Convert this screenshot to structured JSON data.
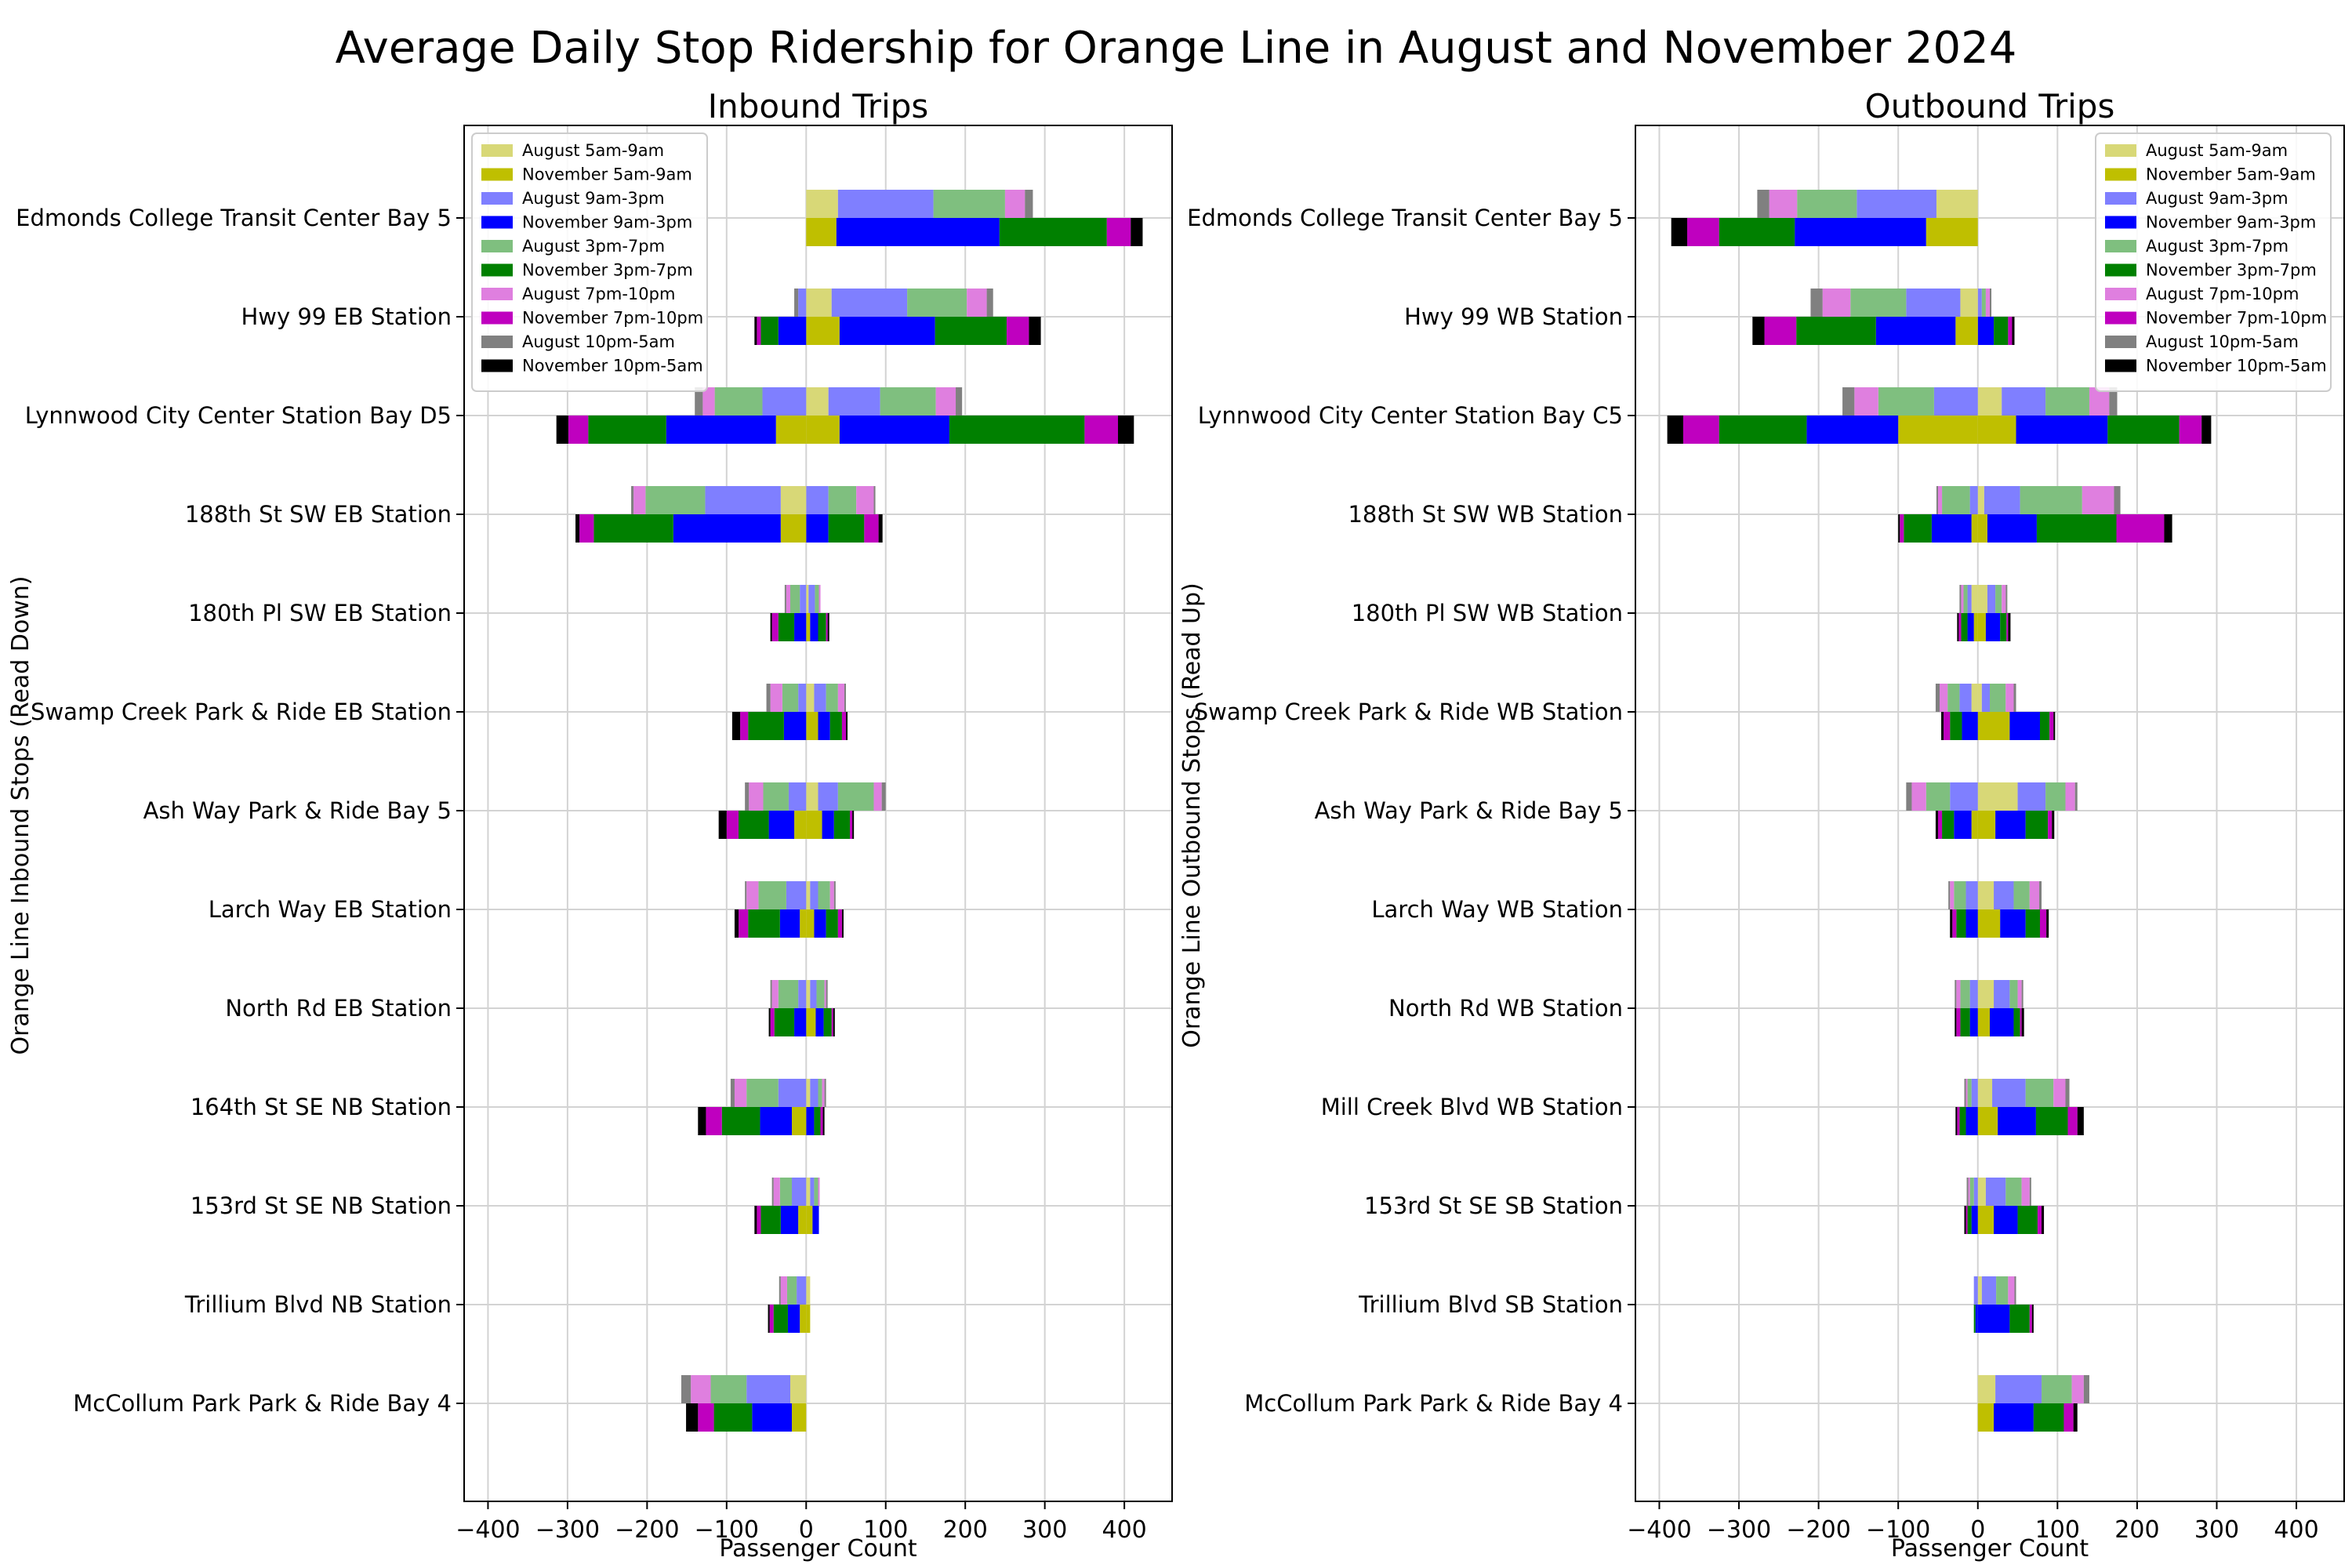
{
  "figure_title": "Average Daily Stop Ridership for Orange Line in August and November 2024",
  "legend": [
    {
      "key": "aug_am",
      "label": "August 5am-9am",
      "color": "#d8d877"
    },
    {
      "key": "nov_am",
      "label": "November 5am-9am",
      "color": "#bfbf00"
    },
    {
      "key": "aug_mid",
      "label": "August 9am-3pm",
      "color": "#7f7fff"
    },
    {
      "key": "nov_mid",
      "label": "November 9am-3pm",
      "color": "#0000ff"
    },
    {
      "key": "aug_pm",
      "label": "August 3pm-7pm",
      "color": "#7fbf7f"
    },
    {
      "key": "nov_pm",
      "label": "November 3pm-7pm",
      "color": "#008000"
    },
    {
      "key": "aug_eve",
      "label": "August 7pm-10pm",
      "color": "#df7fdf"
    },
    {
      "key": "nov_eve",
      "label": "November 7pm-10pm",
      "color": "#bf00bf"
    },
    {
      "key": "aug_night",
      "label": "August 10pm-5am",
      "color": "#808080"
    },
    {
      "key": "nov_night",
      "label": "November 10pm-5am",
      "color": "#000000"
    }
  ],
  "chart_data": [
    {
      "type": "bar",
      "orientation": "horizontal",
      "stacked": true,
      "title": "Inbound Trips",
      "xlabel": "Passenger Count",
      "ylabel": "Orange Line Inbound Stops (Read Down)",
      "xlim": [
        -430,
        460
      ],
      "xticks": [
        -400,
        -300,
        -200,
        -100,
        0,
        100,
        200,
        300,
        400
      ],
      "grid": true,
      "legend_position": "top-left",
      "stops": [
        "Edmonds College Transit Center Bay 5",
        "Hwy 99 EB Station",
        "Lynnwood City Center Station Bay D5",
        "188th St SW EB Station",
        "180th Pl SW EB Station",
        "Swamp Creek Park & Ride EB Station",
        "Ash Way Park & Ride Bay 5",
        "Larch Way EB Station",
        "North Rd EB Station",
        "164th St SE NB Station",
        "153rd St SE NB Station",
        "Trillium Blvd NB Station",
        "McCollum Park Park & Ride Bay 4"
      ],
      "august": {
        "negative": [
          {
            "period": "5am-9am",
            "values": [
              0,
              0,
              0,
              32,
              0,
              0,
              0,
              0,
              0,
              0,
              0,
              0,
              20
            ]
          },
          {
            "period": "9am-3pm",
            "values": [
              0,
              10,
              55,
              95,
              8,
              10,
              22,
              25,
              10,
              35,
              18,
              12,
              55
            ]
          },
          {
            "period": "3pm-7pm",
            "values": [
              0,
              0,
              60,
              75,
              12,
              20,
              32,
              35,
              25,
              40,
              15,
              12,
              45
            ]
          },
          {
            "period": "7pm-10pm",
            "values": [
              0,
              0,
              15,
              15,
              5,
              15,
              18,
              15,
              8,
              15,
              8,
              8,
              25
            ]
          },
          {
            "period": "10pm-5am",
            "values": [
              0,
              5,
              10,
              3,
              2,
              5,
              5,
              2,
              2,
              5,
              2,
              2,
              12
            ]
          }
        ],
        "positive": [
          {
            "period": "5am-9am",
            "values": [
              40,
              32,
              28,
              0,
              3,
              10,
              15,
              5,
              5,
              5,
              5,
              5,
              0
            ]
          },
          {
            "period": "9am-3pm",
            "values": [
              120,
              95,
              65,
              28,
              8,
              15,
              25,
              10,
              8,
              10,
              5,
              0,
              0
            ]
          },
          {
            "period": "3pm-7pm",
            "values": [
              90,
              75,
              70,
              35,
              5,
              15,
              45,
              15,
              10,
              5,
              5,
              0,
              0
            ]
          },
          {
            "period": "7pm-10pm",
            "values": [
              25,
              25,
              25,
              22,
              2,
              8,
              10,
              5,
              2,
              3,
              2,
              0,
              0
            ]
          },
          {
            "period": "10pm-5am",
            "values": [
              10,
              8,
              8,
              2,
              0,
              2,
              5,
              2,
              2,
              2,
              0,
              0,
              0
            ]
          }
        ]
      },
      "november": {
        "negative": [
          {
            "period": "5am-9am",
            "values": [
              0,
              0,
              38,
              32,
              0,
              0,
              15,
              8,
              0,
              18,
              10,
              8,
              18
            ]
          },
          {
            "period": "9am-3pm",
            "values": [
              0,
              35,
              138,
              135,
              15,
              28,
              32,
              25,
              15,
              40,
              22,
              15,
              50
            ]
          },
          {
            "period": "3pm-7pm",
            "values": [
              0,
              22,
              98,
              100,
              20,
              45,
              38,
              40,
              25,
              48,
              25,
              18,
              48
            ]
          },
          {
            "period": "7pm-10pm",
            "values": [
              0,
              5,
              25,
              18,
              8,
              10,
              15,
              12,
              5,
              20,
              5,
              5,
              20
            ]
          },
          {
            "period": "10pm-5am",
            "values": [
              0,
              3,
              15,
              5,
              2,
              10,
              10,
              5,
              2,
              10,
              3,
              2,
              15
            ]
          }
        ],
        "positive": [
          {
            "period": "5am-9am",
            "values": [
              38,
              42,
              42,
              0,
              5,
              15,
              20,
              10,
              12,
              0,
              8,
              5,
              0
            ]
          },
          {
            "period": "9am-3pm",
            "values": [
              205,
              120,
              138,
              28,
              10,
              15,
              15,
              15,
              10,
              10,
              8,
              0,
              0
            ]
          },
          {
            "period": "3pm-7pm",
            "values": [
              135,
              90,
              170,
              45,
              10,
              15,
              20,
              15,
              10,
              8,
              0,
              0,
              0
            ]
          },
          {
            "period": "7pm-10pm",
            "values": [
              30,
              28,
              42,
              18,
              2,
              5,
              3,
              5,
              2,
              3,
              0,
              0,
              0
            ]
          },
          {
            "period": "10pm-5am",
            "values": [
              15,
              15,
              20,
              5,
              2,
              2,
              2,
              2,
              2,
              2,
              0,
              0,
              0
            ]
          }
        ]
      }
    },
    {
      "type": "bar",
      "orientation": "horizontal",
      "stacked": true,
      "title": "Outbound Trips",
      "xlabel": "Passenger Count",
      "ylabel": "Orange Line Outbound Stops (Read Up)",
      "xlim": [
        -430,
        460
      ],
      "xticks": [
        -400,
        -300,
        -200,
        -100,
        0,
        100,
        200,
        300,
        400
      ],
      "grid": true,
      "legend_position": "top-right",
      "stops": [
        "Edmonds College Transit Center Bay 5",
        "Hwy 99 WB Station",
        "Lynnwood City Center Station Bay C5",
        "188th St SW WB Station",
        "180th Pl SW WB Station",
        "Swamp Creek Park & Ride WB Station",
        "Ash Way Park & Ride Bay 5",
        "Larch Way WB Station",
        "North Rd WB Station",
        "Mill Creek Blvd WB Station",
        "153rd St SE SB Station",
        "Trillium Blvd SB Station",
        "McCollum Park Park & Ride Bay 4"
      ],
      "august": {
        "negative": [
          {
            "period": "5am-9am",
            "values": [
              52,
              22,
              0,
              0,
              8,
              8,
              0,
              0,
              0,
              0,
              0,
              0,
              0
            ]
          },
          {
            "period": "9am-3pm",
            "values": [
              100,
              68,
              55,
              10,
              5,
              15,
              35,
              15,
              10,
              8,
              5,
              5,
              0
            ]
          },
          {
            "period": "3pm-7pm",
            "values": [
              75,
              70,
              70,
              35,
              5,
              15,
              30,
              15,
              12,
              5,
              5,
              0,
              0
            ]
          },
          {
            "period": "7pm-10pm",
            "values": [
              35,
              35,
              30,
              5,
              3,
              10,
              18,
              5,
              5,
              2,
              2,
              0,
              0
            ]
          },
          {
            "period": "10pm-5am",
            "values": [
              15,
              15,
              15,
              2,
              2,
              5,
              7,
              2,
              2,
              2,
              2,
              0,
              0
            ]
          }
        ],
        "positive": [
          {
            "period": "5am-9am",
            "values": [
              0,
              0,
              30,
              8,
              12,
              5,
              50,
              20,
              20,
              18,
              10,
              5,
              22
            ]
          },
          {
            "period": "9am-3pm",
            "values": [
              0,
              5,
              55,
              45,
              10,
              10,
              35,
              25,
              20,
              42,
              25,
              18,
              58
            ]
          },
          {
            "period": "3pm-7pm",
            "values": [
              0,
              5,
              55,
              78,
              8,
              20,
              25,
              20,
              10,
              35,
              20,
              15,
              38
            ]
          },
          {
            "period": "7pm-10pm",
            "values": [
              0,
              5,
              25,
              40,
              5,
              10,
              12,
              12,
              5,
              15,
              10,
              8,
              15
            ]
          },
          {
            "period": "10pm-5am",
            "values": [
              0,
              2,
              10,
              8,
              2,
              3,
              3,
              3,
              2,
              5,
              2,
              2,
              7
            ]
          }
        ]
      },
      "november": {
        "negative": [
          {
            "period": "5am-9am",
            "values": [
              65,
              28,
              100,
              8,
              5,
              0,
              8,
              0,
              0,
              0,
              0,
              0,
              0
            ]
          },
          {
            "period": "9am-3pm",
            "values": [
              165,
              100,
              115,
              50,
              8,
              20,
              22,
              15,
              10,
              15,
              8,
              3,
              0
            ]
          },
          {
            "period": "3pm-7pm",
            "values": [
              95,
              100,
              110,
              35,
              8,
              15,
              15,
              12,
              12,
              8,
              5,
              2,
              0
            ]
          },
          {
            "period": "7pm-10pm",
            "values": [
              40,
              40,
              45,
              5,
              3,
              8,
              5,
              5,
              5,
              3,
              2,
              0,
              0
            ]
          },
          {
            "period": "10pm-5am",
            "values": [
              20,
              15,
              20,
              2,
              2,
              3,
              3,
              3,
              2,
              2,
              2,
              0,
              0
            ]
          }
        ],
        "positive": [
          {
            "period": "5am-9am",
            "values": [
              0,
              0,
              48,
              12,
              10,
              40,
              22,
              28,
              15,
              25,
              20,
              0,
              20
            ]
          },
          {
            "period": "9am-3pm",
            "values": [
              0,
              20,
              115,
              62,
              18,
              38,
              38,
              32,
              30,
              48,
              30,
              40,
              50
            ]
          },
          {
            "period": "3pm-7pm",
            "values": [
              0,
              18,
              90,
              100,
              8,
              12,
              28,
              18,
              8,
              40,
              25,
              25,
              38
            ]
          },
          {
            "period": "7pm-10pm",
            "values": [
              0,
              5,
              28,
              60,
              2,
              5,
              5,
              8,
              2,
              12,
              5,
              3,
              12
            ]
          },
          {
            "period": "10pm-5am",
            "values": [
              0,
              3,
              12,
              10,
              3,
              2,
              3,
              3,
              3,
              8,
              3,
              2,
              5
            ]
          }
        ]
      }
    }
  ]
}
